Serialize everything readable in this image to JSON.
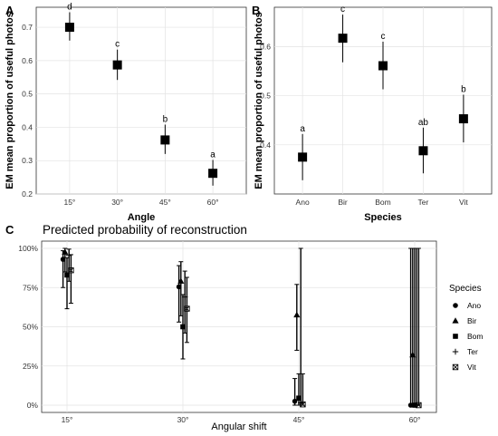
{
  "chart_data": [
    {
      "panel": "A",
      "type": "scatter",
      "xlabel": "Angle",
      "ylabel": "EM mean proportion of useful photos",
      "categories": [
        "15°",
        "30°",
        "45°",
        "60°"
      ],
      "yticks": [
        0.2,
        0.3,
        0.4,
        0.5,
        0.6,
        0.7
      ],
      "ylim": [
        0.2,
        0.76
      ],
      "grid": true,
      "points": [
        {
          "x": "15°",
          "y": 0.7,
          "lo": 0.66,
          "hi": 0.745,
          "label": "d"
        },
        {
          "x": "30°",
          "y": 0.587,
          "lo": 0.542,
          "hi": 0.633,
          "label": "c"
        },
        {
          "x": "45°",
          "y": 0.362,
          "lo": 0.32,
          "hi": 0.408,
          "label": "b"
        },
        {
          "x": "60°",
          "y": 0.262,
          "lo": 0.225,
          "hi": 0.302,
          "label": "a"
        }
      ]
    },
    {
      "panel": "B",
      "type": "scatter",
      "xlabel": "Species",
      "ylabel": "EM mean proportion of useful photos",
      "categories": [
        "Ano",
        "Bir",
        "Bom",
        "Ter",
        "Vit"
      ],
      "yticks": [
        0.4,
        0.5,
        0.6
      ],
      "ylim": [
        0.3,
        0.68
      ],
      "grid": true,
      "points": [
        {
          "x": "Ano",
          "y": 0.375,
          "lo": 0.328,
          "hi": 0.422,
          "label": "a"
        },
        {
          "x": "Bir",
          "y": 0.617,
          "lo": 0.568,
          "hi": 0.665,
          "label": "c"
        },
        {
          "x": "Bom",
          "y": 0.561,
          "lo": 0.513,
          "hi": 0.61,
          "label": "c"
        },
        {
          "x": "Ter",
          "y": 0.388,
          "lo": 0.342,
          "hi": 0.435,
          "label": "ab"
        },
        {
          "x": "Vit",
          "y": 0.453,
          "lo": 0.405,
          "hi": 0.502,
          "label": "b"
        }
      ]
    },
    {
      "panel": "C",
      "type": "scatter",
      "title": "Predicted probability of reconstruction",
      "xlabel": "Angular shift",
      "ylabel": "",
      "categories": [
        "15°",
        "30°",
        "45°",
        "60°"
      ],
      "yticks": [
        "0%",
        "25%",
        "50%",
        "75%",
        "100%"
      ],
      "ylim": [
        0,
        1
      ],
      "grid": true,
      "legend": {
        "title": "Species",
        "placement": "right"
      },
      "series": [
        {
          "name": "Ano",
          "marker": "circle",
          "values": [
            {
              "x": "15°",
              "y": 0.93,
              "lo": 0.75,
              "hi": 0.985
            },
            {
              "x": "30°",
              "y": 0.755,
              "lo": 0.53,
              "hi": 0.89
            },
            {
              "x": "45°",
              "y": 0.025,
              "lo": 0.0,
              "hi": 0.17
            },
            {
              "x": "60°",
              "y": 0.0,
              "lo": 0.0,
              "hi": 1.0
            }
          ]
        },
        {
          "name": "Bir",
          "marker": "triangle",
          "values": [
            {
              "x": "15°",
              "y": 0.975,
              "lo": 0.85,
              "hi": 1.0
            },
            {
              "x": "30°",
              "y": 0.79,
              "lo": 0.57,
              "hi": 0.915
            },
            {
              "x": "45°",
              "y": 0.575,
              "lo": 0.35,
              "hi": 0.77
            },
            {
              "x": "60°",
              "y": 0.32,
              "lo": 0.0,
              "hi": 1.0
            }
          ]
        },
        {
          "name": "Bom",
          "marker": "square",
          "values": [
            {
              "x": "15°",
              "y": 0.83,
              "lo": 0.615,
              "hi": 0.94
            },
            {
              "x": "30°",
              "y": 0.5,
              "lo": 0.295,
              "hi": 0.705
            },
            {
              "x": "45°",
              "y": 0.045,
              "lo": 0.0,
              "hi": 0.2
            },
            {
              "x": "60°",
              "y": 0.0,
              "lo": 0.0,
              "hi": 1.0
            }
          ]
        },
        {
          "name": "Ter",
          "marker": "plus",
          "values": [
            {
              "x": "15°",
              "y": 0.955,
              "lo": 0.79,
              "hi": 0.995
            },
            {
              "x": "30°",
              "y": 0.69,
              "lo": 0.46,
              "hi": 0.855
            },
            {
              "x": "45°",
              "y": 0.015,
              "lo": 0.0,
              "hi": 1.0
            },
            {
              "x": "60°",
              "y": 0.0,
              "lo": 0.0,
              "hi": 1.0
            }
          ]
        },
        {
          "name": "Vit",
          "marker": "boxcross",
          "values": [
            {
              "x": "15°",
              "y": 0.86,
              "lo": 0.65,
              "hi": 0.96
            },
            {
              "x": "30°",
              "y": 0.615,
              "lo": 0.4,
              "hi": 0.815
            },
            {
              "x": "45°",
              "y": 0.005,
              "lo": 0.0,
              "hi": 0.2
            },
            {
              "x": "60°",
              "y": 0.0,
              "lo": 0.0,
              "hi": 1.0
            }
          ]
        }
      ]
    }
  ]
}
